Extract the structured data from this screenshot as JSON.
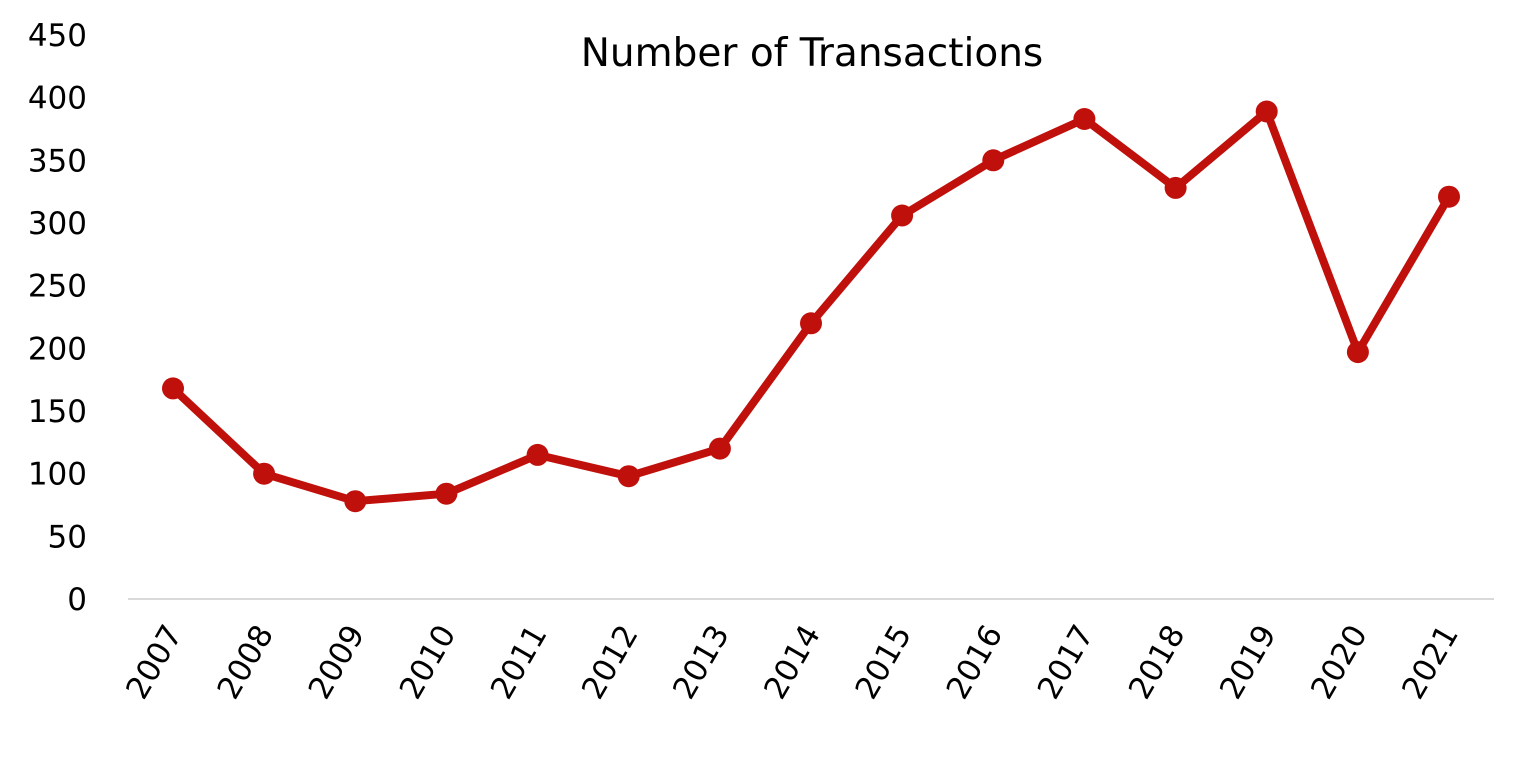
{
  "chart_data": {
    "type": "line",
    "title": "Number of Transactions",
    "xlabel": "",
    "ylabel": "",
    "x": [
      "2007",
      "2008",
      "2009",
      "2010",
      "2011",
      "2012",
      "2013",
      "2014",
      "2015",
      "2016",
      "2017",
      "2018",
      "2019",
      "2020",
      "2021"
    ],
    "y_ticks": [
      "0",
      "50",
      "100",
      "150",
      "200",
      "250",
      "300",
      "350",
      "400",
      "450"
    ],
    "series": [
      {
        "values": [
          168,
          100,
          78,
          84,
          115,
          98,
          120,
          220,
          306,
          350,
          383,
          328,
          389,
          197,
          321
        ],
        "color": "#c0100c"
      }
    ],
    "ylim": [
      0,
      450
    ],
    "grid": false,
    "legend": "none",
    "baseline_color": "#d9d9d9"
  }
}
